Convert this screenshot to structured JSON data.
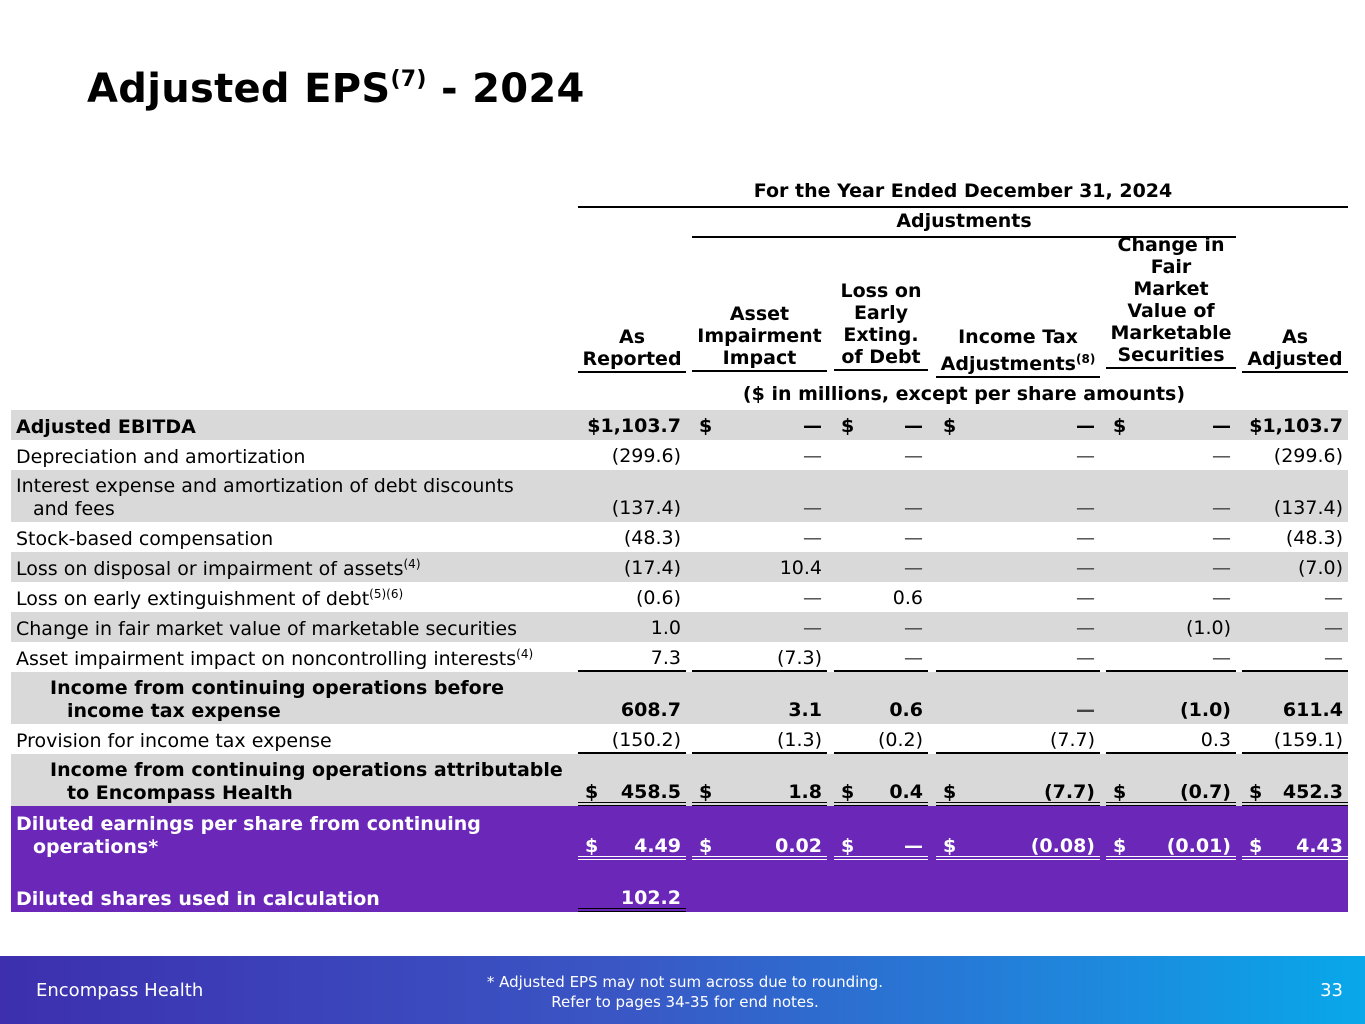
{
  "title": {
    "main": "Adjusted EPS",
    "sup": "(7)",
    "suffix": " - 2024"
  },
  "header": {
    "period": "For the Year Ended December 31, 2024",
    "adjustments": "Adjustments",
    "units": "($ in millions, except per share amounts)",
    "columns": [
      {
        "lines": [
          "As",
          "Reported"
        ]
      },
      {
        "lines": [
          "Asset",
          "Impairment",
          "Impact"
        ]
      },
      {
        "lines": [
          "Loss on",
          "Early",
          "Exting.",
          "of Debt"
        ]
      },
      {
        "lines": [
          "Income Tax",
          "Adjustments"
        ],
        "sup": "(8)"
      },
      {
        "lines": [
          "Change in",
          "Fair",
          "Market",
          "Value of",
          "Marketable",
          "Securities"
        ]
      },
      {
        "lines": [
          "As",
          "Adjusted"
        ]
      }
    ]
  },
  "rows": [
    {
      "label": "Adjusted EBITDA",
      "values": [
        "$1,103.7",
        "—",
        "—",
        "—",
        "—",
        "$1,103.7"
      ]
    },
    {
      "label": "Depreciation and amortization",
      "values": [
        "(299.6)",
        "—",
        "—",
        "—",
        "—",
        "(299.6)"
      ]
    },
    {
      "label": "Interest expense and amortization of debt discounts",
      "label2": "and fees",
      "values": [
        "(137.4)",
        "—",
        "—",
        "—",
        "—",
        "(137.4)"
      ]
    },
    {
      "label": "Stock-based compensation",
      "values": [
        "(48.3)",
        "—",
        "—",
        "—",
        "—",
        "(48.3)"
      ]
    },
    {
      "label": "Loss on disposal or impairment of assets",
      "sup": "(4)",
      "values": [
        "(17.4)",
        "10.4",
        "—",
        "—",
        "—",
        "(7.0)"
      ]
    },
    {
      "label": "Loss on early extinguishment of debt",
      "sup": "(5)(6)",
      "values": [
        "(0.6)",
        "—",
        "0.6",
        "—",
        "—",
        "—"
      ]
    },
    {
      "label": "Change in fair market value of marketable securities",
      "values": [
        "1.0",
        "—",
        "—",
        "—",
        "(1.0)",
        "—"
      ]
    },
    {
      "label": "Asset impairment impact on noncontrolling interests",
      "sup": "(4)",
      "values": [
        "7.3",
        "(7.3)",
        "—",
        "—",
        "—",
        "—"
      ]
    },
    {
      "label": "Income from continuing operations before",
      "label2": "income tax expense",
      "values": [
        "608.7",
        "3.1",
        "0.6",
        "—",
        "(1.0)",
        "611.4"
      ]
    },
    {
      "label": "Provision for income tax expense",
      "values": [
        "(150.2)",
        "(1.3)",
        "(0.2)",
        "(7.7)",
        "0.3",
        "(159.1)"
      ]
    },
    {
      "label": "Income from continuing operations attributable",
      "label2": "to Encompass Health",
      "values": [
        "458.5",
        "1.8",
        "0.4",
        "(7.7)",
        "(0.7)",
        "452.3"
      ]
    },
    {
      "label": "Diluted earnings per share from continuing",
      "label2": "operations*",
      "values": [
        "4.49",
        "0.02",
        "—",
        "(0.08)",
        "(0.01)",
        "4.43"
      ]
    },
    {
      "label": "Diluted shares used in calculation",
      "values": [
        "102.2"
      ]
    }
  ],
  "currency_symbol": "$",
  "footer": {
    "company": "Encompass Health",
    "note_line1": "*  Adjusted EPS may not sum across due to rounding.",
    "note_line2": "Refer to pages 34-35 for end notes.",
    "page": "33"
  },
  "colors": {
    "band_gray": "#d9d9d9",
    "highlight_purple": "#6a27b8",
    "footer_start": "#3d2fae",
    "footer_end": "#08a8ea"
  }
}
